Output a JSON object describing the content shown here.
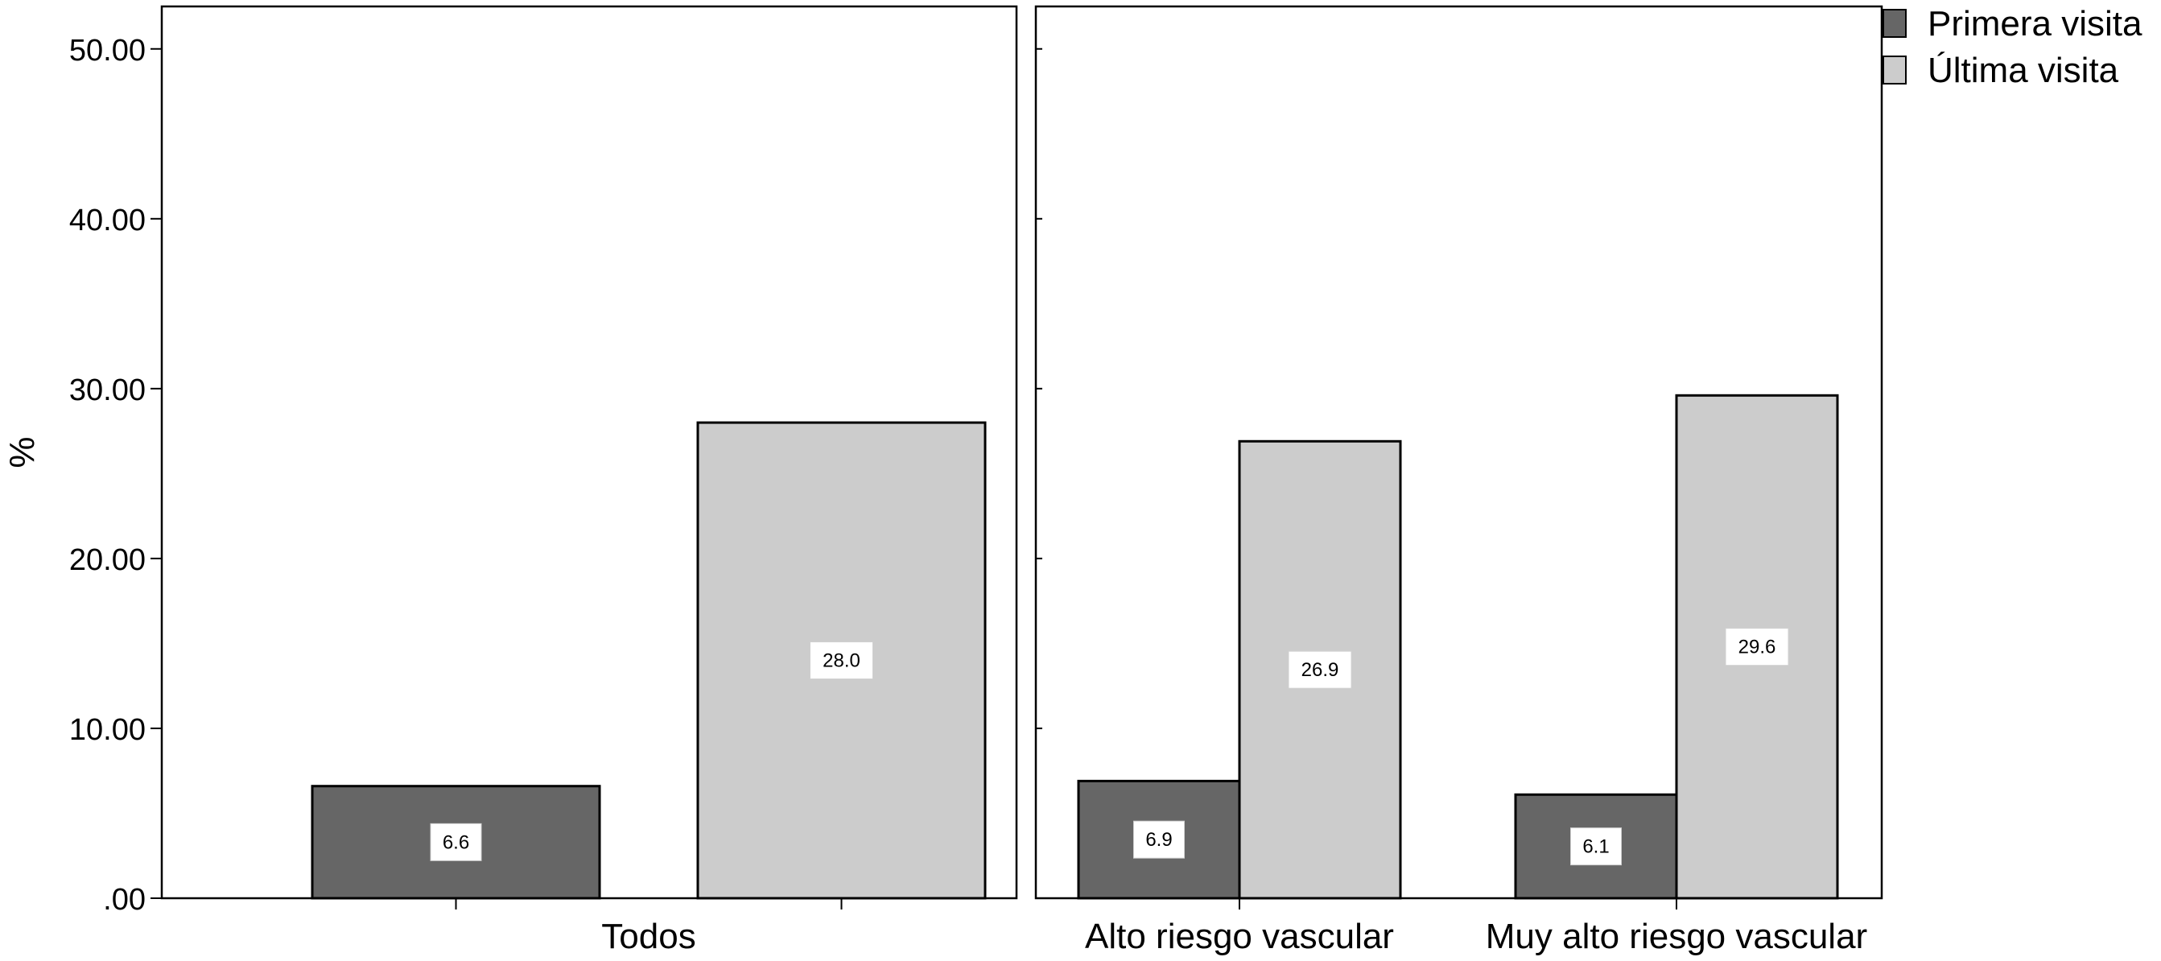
{
  "chart_data": {
    "type": "bar",
    "title": "",
    "xlabel": "",
    "ylabel": "%",
    "ylim": [
      0,
      52.5
    ],
    "yticks": [
      0,
      10,
      20,
      30,
      40,
      50
    ],
    "ytick_labels": [
      ".00",
      "10.00",
      "20.00",
      "30.00",
      "40.00",
      "50.00"
    ],
    "grid": false,
    "legend_position": "top-right",
    "panels": [
      {
        "categories": [
          "Todos"
        ],
        "series": [
          {
            "name": "Primera visita",
            "values": [
              6.6
            ]
          },
          {
            "name": "Última visita",
            "values": [
              28.0
            ]
          }
        ],
        "data_labels": [
          [
            "6.6"
          ],
          [
            "28.0"
          ]
        ]
      },
      {
        "categories": [
          "Alto riesgo vascular",
          "Muy alto riesgo vascular"
        ],
        "series": [
          {
            "name": "Primera visita",
            "values": [
              6.9,
              6.1
            ]
          },
          {
            "name": "Última visita",
            "values": [
              26.9,
              29.6
            ]
          }
        ],
        "data_labels": [
          [
            "6.9",
            "6.1"
          ],
          [
            "26.9",
            "29.6"
          ]
        ]
      }
    ],
    "legend": [
      {
        "name": "Primera visita",
        "color": "#666666"
      },
      {
        "name": "Última visita",
        "color": "#cccccc"
      }
    ],
    "colors": {
      "primera": "#666666",
      "ultima": "#cccccc",
      "frame": "#000000",
      "label_box": "#ffffff"
    }
  }
}
